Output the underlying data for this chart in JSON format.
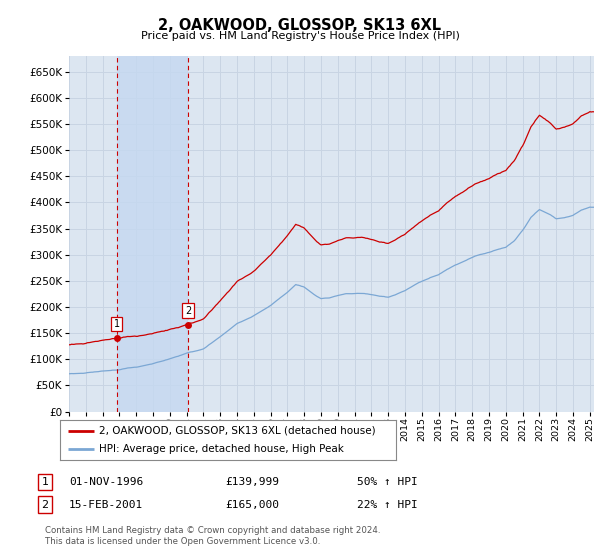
{
  "title": "2, OAKWOOD, GLOSSOP, SK13 6XL",
  "subtitle": "Price paid vs. HM Land Registry's House Price Index (HPI)",
  "background_color": "#ffffff",
  "plot_bg_color": "#dce6f1",
  "grid_color": "#c8d4e3",
  "shade_color": "#c5d8f0",
  "sale1_date_str": "01-NOV-1996",
  "sale1_price": 139999,
  "sale2_date_str": "15-FEB-2001",
  "sale2_price": 165000,
  "sale1_hpi_text": "50% ↑ HPI",
  "sale2_hpi_text": "22% ↑ HPI",
  "legend_line1": "2, OAKWOOD, GLOSSOP, SK13 6XL (detached house)",
  "legend_line2": "HPI: Average price, detached house, High Peak",
  "footnote": "Contains HM Land Registry data © Crown copyright and database right 2024.\nThis data is licensed under the Open Government Licence v3.0.",
  "hpi_color": "#7ba7d4",
  "price_color": "#cc0000",
  "vline_color": "#cc0000",
  "ymin": 0,
  "ymax": 680000,
  "hpi_anchors_years": [
    1994.0,
    1995.0,
    1996.0,
    1996.83,
    1997.5,
    1998.5,
    1999.5,
    2000.5,
    2001.0,
    2002.0,
    2003.0,
    2004.0,
    2005.0,
    2006.0,
    2007.0,
    2007.5,
    2008.0,
    2008.5,
    2009.0,
    2009.5,
    2010.0,
    2010.5,
    2011.0,
    2011.5,
    2012.0,
    2012.5,
    2013.0,
    2013.5,
    2014.0,
    2014.5,
    2015.0,
    2015.5,
    2016.0,
    2016.5,
    2017.0,
    2017.5,
    2018.0,
    2018.5,
    2019.0,
    2019.5,
    2020.0,
    2020.5,
    2021.0,
    2021.5,
    2022.0,
    2022.5,
    2023.0,
    2023.5,
    2024.0,
    2024.5,
    2025.0
  ],
  "hpi_anchors_vals": [
    72000,
    74000,
    78000,
    80000,
    85000,
    90000,
    98000,
    107000,
    113000,
    122000,
    145000,
    170000,
    185000,
    205000,
    230000,
    245000,
    240000,
    228000,
    218000,
    220000,
    225000,
    228000,
    228000,
    228000,
    225000,
    222000,
    220000,
    225000,
    232000,
    240000,
    248000,
    255000,
    260000,
    270000,
    278000,
    285000,
    292000,
    298000,
    302000,
    308000,
    312000,
    325000,
    345000,
    370000,
    385000,
    378000,
    368000,
    370000,
    375000,
    385000,
    390000
  ],
  "prop_ratio": 1.5
}
